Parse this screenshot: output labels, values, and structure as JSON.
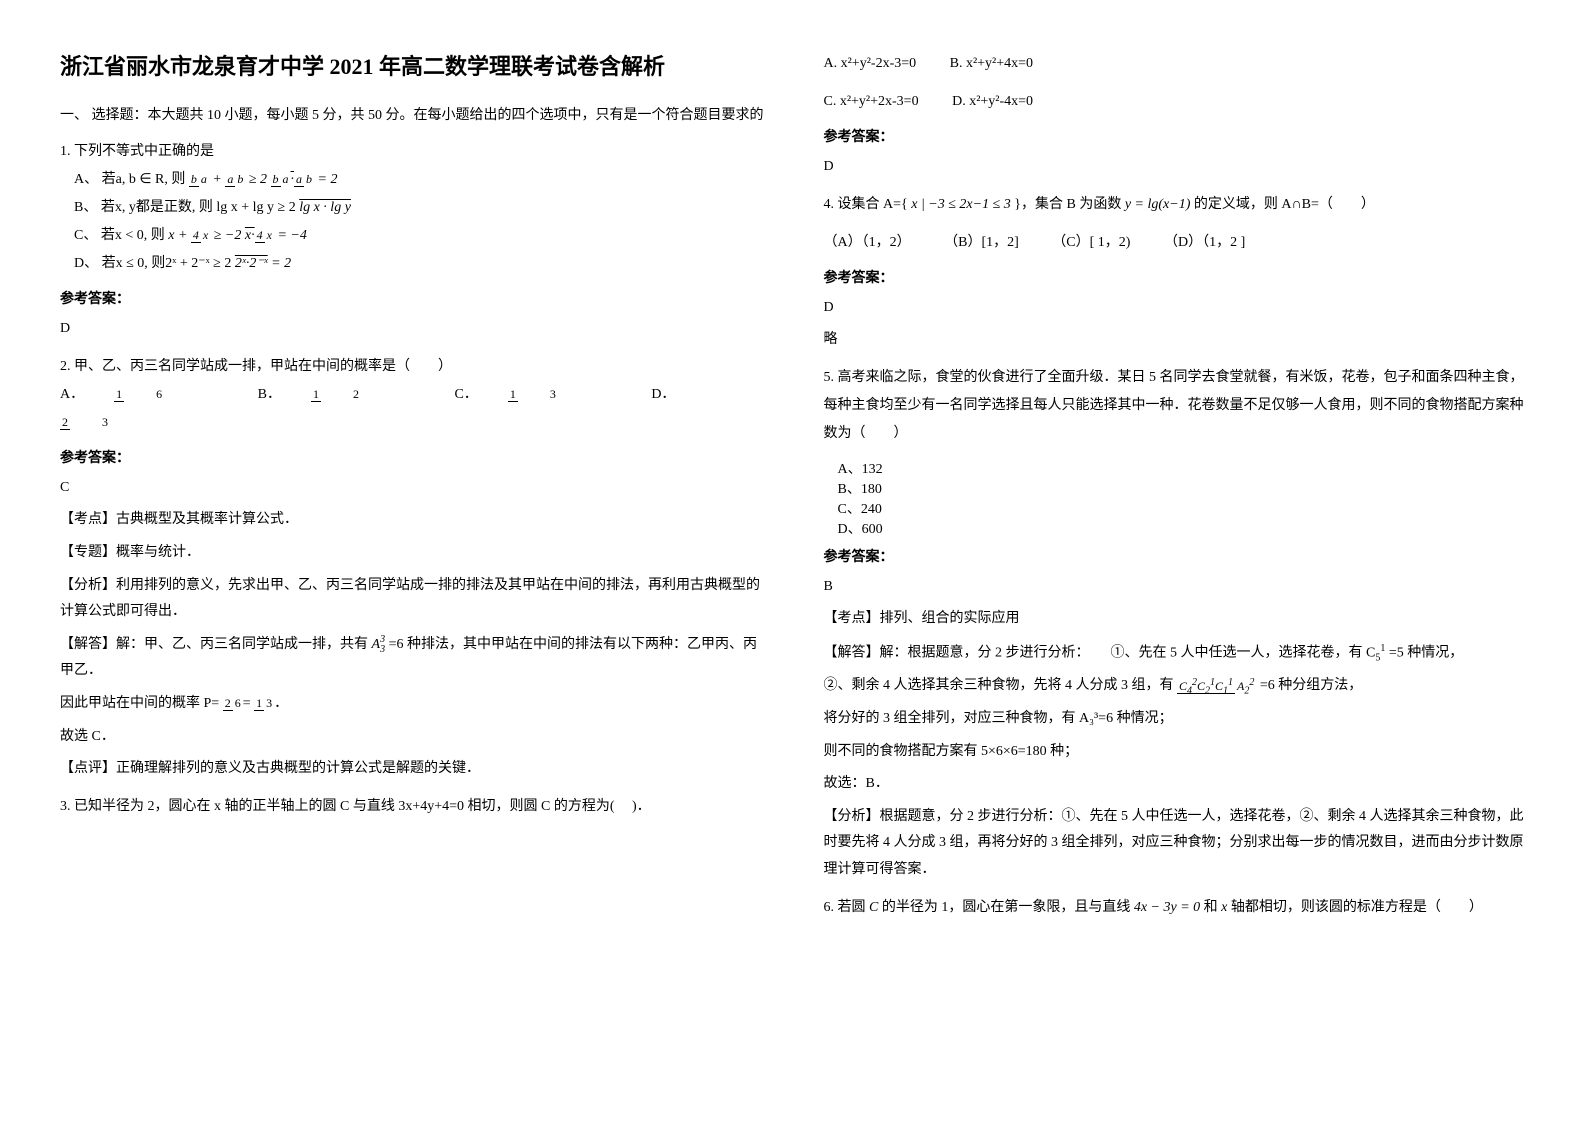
{
  "title": "浙江省丽水市龙泉育才中学 2021 年高二数学理联考试卷含解析",
  "section1_head": "一、 选择题：本大题共 10 小题，每小题 5 分，共 50 分。在每小题给出的四个选项中，只有是一个符合题目要求的",
  "q1": {
    "stem": "1. 下列不等式中正确的是",
    "optA_pre": "A、",
    "optA_txt": "若a, b ∈ R, 则",
    "optB_pre": "B、",
    "optB_txt": "若x, y都是正数, 则 lg x + lg y ≥ 2",
    "optC_pre": "C、",
    "optC_txt": "若x < 0, 则",
    "optD_pre": "D、",
    "optD_txt": "若x ≤ 0, 则2ˣ + 2⁻ˣ ≥ 2",
    "ans_label": "参考答案：",
    "ans": "D"
  },
  "q2": {
    "stem": "2. 甲、乙、丙三名同学站成一排，甲站在中间的概率是（　　）",
    "optA": "A．",
    "optB": "B．",
    "optC": "C．",
    "optD": "D．",
    "ans_label": "参考答案：",
    "ans": "C",
    "l1": "【考点】古典概型及其概率计算公式．",
    "l2": "【专题】概率与统计．",
    "l3": "【分析】利用排列的意义，先求出甲、乙、丙三名同学站成一排的排法及其甲站在中间的排法，再利用古典概型的计算公式即可得出．",
    "l4": "【解答】解：甲、乙、丙三名同学站成一排，共有",
    "l4b": "=6 种排法，其中甲站在中间的排法有以下两种：乙甲丙、丙甲乙．",
    "l5": "因此甲站在中间的概率 P=",
    "l6": "故选 C．",
    "l7": "【点评】正确理解排列的意义及古典概型的计算公式是解题的关键．"
  },
  "q3": {
    "stem": "3. 已知半径为 2，圆心在 x 轴的正半轴上的圆 C 与直线 3x+4y+4=0 相切，则圆 C 的方程为(　 )．",
    "optA": "A. x²+y²-2x-3=0",
    "optB": "B. x²+y²+4x=0",
    "optC": "C. x²+y²+2x-3=0",
    "optD": "D. x²+y²-4x=0",
    "ans_label": "参考答案：",
    "ans": "D"
  },
  "q4": {
    "stem_a": "4. 设集合 A={",
    "stem_b": "}，集合 B 为函数",
    "stem_c": "的定义域，则 A∩B=（　　）",
    "optA": "（A）（1，2）",
    "optB": "（B）[1，2]",
    "optC": "（C）[ 1，2)",
    "optD": "（D）（1，2 ]",
    "ans_label": "参考答案：",
    "ans": "D",
    "ans2": "略"
  },
  "q5": {
    "stem": "5. 高考来临之际，食堂的伙食进行了全面升级．某日 5 名同学去食堂就餐，有米饭，花卷，包子和面条四种主食，每种主食均至少有一名同学选择且每人只能选择其中一种．花卷数量不足仅够一人食用，则不同的食物搭配方案种数为（　　）",
    "optA": "A、132",
    "optB": "B、180",
    "optC": "C、240",
    "optD": "D、600",
    "ans_label": "参考答案：",
    "ans": "B",
    "l1": "【考点】排列、组合的实际应用",
    "l2a": "【解答】解：根据题意，分 2 步进行分析：　　①、先在 5 人中任选一人，选择花卷，有 C",
    "l2b": "=5 种情况，",
    "l3a": "②、剩余 4 人选择其余三种食物，先将 4 人分成 3 组，有",
    "l3b": "=6 种分组方法，",
    "l4": "将分好的 3 组全排列，对应三种食物，有 A₃³=6 种情况；",
    "l5": "则不同的食物搭配方案有 5×6×6=180 种；",
    "l6": "故选：B．",
    "l7": "【分析】根据题意，分 2 步进行分析：①、先在 5 人中任选一人，选择花卷，②、剩余 4 人选择其余三种食物，此时要先将 4 人分成 3 组，再将分好的 3 组全排列，对应三种食物；分别求出每一步的情况数目，进而由分步计数原理计算可得答案．"
  },
  "q6": {
    "stem_a": "6. 若圆",
    "stem_b": "的半径为 1，圆心在第一象限，且与直线",
    "stem_c": "和",
    "stem_d": "轴都相切，则该圆的标准方程是（　　）"
  }
}
